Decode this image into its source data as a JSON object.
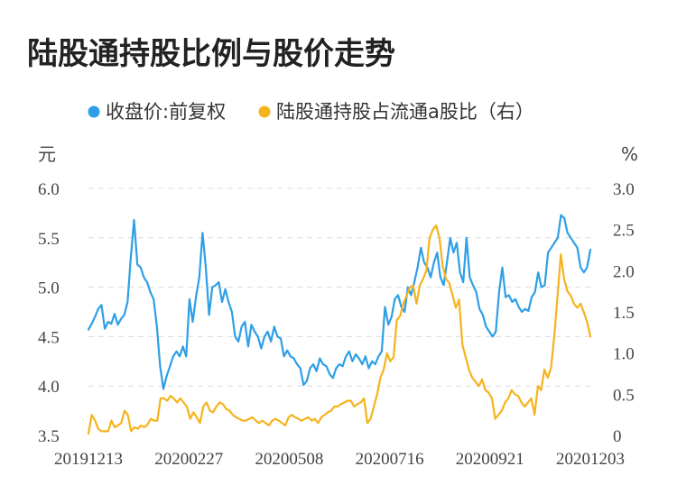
{
  "title": "陆股通持股比例与股价走势",
  "chart_data": {
    "type": "line",
    "title": "陆股通持股比例与股价走势",
    "y_left_unit": "元",
    "y_right_unit": "%",
    "y_left_ticks": [
      "6.0",
      "5.5",
      "5.0",
      "4.5",
      "4.0",
      "3.5"
    ],
    "y_right_ticks": [
      "3.0",
      "2.5",
      "2.0",
      "1.5",
      "1.0",
      "0.5",
      "0"
    ],
    "ylim_left": [
      3.5,
      6.0
    ],
    "ylim_right": [
      0,
      3.0
    ],
    "x_tick_labels": [
      "20191213",
      "20200227",
      "20200508",
      "20200716",
      "20200921",
      "20201203"
    ],
    "legend_position": "top-center",
    "grid": "horizontal-dashed",
    "series": [
      {
        "name": "收盘价:前复权",
        "axis": "left",
        "color": "#2E9FE6",
        "values": [
          4.57,
          4.63,
          4.7,
          4.78,
          4.82,
          4.58,
          4.65,
          4.63,
          4.73,
          4.62,
          4.68,
          4.72,
          4.85,
          5.3,
          5.68,
          5.23,
          5.2,
          5.1,
          5.05,
          4.95,
          4.88,
          4.6,
          4.2,
          3.97,
          4.1,
          4.2,
          4.3,
          4.35,
          4.3,
          4.4,
          4.3,
          4.88,
          4.65,
          4.9,
          5.1,
          5.55,
          5.2,
          4.72,
          5.0,
          5.02,
          5.05,
          4.85,
          4.98,
          4.85,
          4.75,
          4.5,
          4.45,
          4.6,
          4.65,
          4.4,
          4.62,
          4.55,
          4.5,
          4.38,
          4.5,
          4.55,
          4.45,
          4.6,
          4.5,
          4.48,
          4.3,
          4.36,
          4.3,
          4.28,
          4.22,
          4.18,
          4.01,
          4.05,
          4.18,
          4.22,
          4.15,
          4.28,
          4.22,
          4.2,
          4.12,
          4.08,
          4.18,
          4.22,
          4.2,
          4.3,
          4.35,
          4.25,
          4.32,
          4.28,
          4.22,
          4.3,
          4.18,
          4.25,
          4.22,
          4.3,
          4.35,
          4.8,
          4.62,
          4.7,
          4.88,
          4.92,
          4.8,
          4.75,
          5.0,
          4.92,
          5.05,
          5.2,
          5.4,
          5.25,
          5.2,
          5.1,
          5.25,
          5.35,
          5.1,
          5.02,
          5.25,
          5.5,
          5.35,
          5.45,
          5.15,
          5.05,
          5.5,
          5.1,
          5.02,
          4.95,
          4.78,
          4.72,
          4.6,
          4.55,
          4.5,
          4.55,
          4.95,
          5.2,
          4.9,
          4.92,
          4.85,
          4.88,
          4.8,
          4.75,
          4.78,
          4.76,
          4.9,
          4.95,
          5.15,
          5.0,
          5.02,
          5.35,
          5.4,
          5.45,
          5.5,
          5.73,
          5.7,
          5.55,
          5.5,
          5.45,
          5.4,
          5.2,
          5.15,
          5.2,
          5.38
        ]
      },
      {
        "name": "陆股通持股占流通a股比（右）",
        "axis": "right",
        "color": "#F5B31D",
        "values": [
          0.02,
          0.25,
          0.18,
          0.08,
          0.05,
          0.05,
          0.05,
          0.18,
          0.1,
          0.12,
          0.15,
          0.3,
          0.25,
          0.05,
          0.1,
          0.08,
          0.12,
          0.1,
          0.13,
          0.2,
          0.18,
          0.18,
          0.45,
          0.45,
          0.42,
          0.48,
          0.45,
          0.4,
          0.45,
          0.4,
          0.35,
          0.2,
          0.28,
          0.22,
          0.15,
          0.35,
          0.4,
          0.3,
          0.28,
          0.35,
          0.4,
          0.38,
          0.32,
          0.3,
          0.25,
          0.22,
          0.2,
          0.18,
          0.18,
          0.2,
          0.22,
          0.18,
          0.15,
          0.18,
          0.15,
          0.12,
          0.18,
          0.2,
          0.18,
          0.15,
          0.12,
          0.22,
          0.25,
          0.22,
          0.2,
          0.18,
          0.2,
          0.22,
          0.18,
          0.2,
          0.15,
          0.22,
          0.25,
          0.28,
          0.3,
          0.35,
          0.35,
          0.38,
          0.4,
          0.42,
          0.42,
          0.35,
          0.38,
          0.4,
          0.45,
          0.15,
          0.2,
          0.35,
          0.5,
          0.7,
          0.8,
          1.0,
          0.9,
          0.95,
          1.4,
          1.45,
          1.6,
          1.7,
          1.8,
          1.82,
          1.6,
          1.82,
          1.9,
          2.0,
          2.4,
          2.5,
          2.55,
          2.4,
          2.05,
          1.9,
          1.85,
          1.7,
          1.55,
          1.65,
          1.1,
          0.95,
          0.8,
          0.7,
          0.65,
          0.6,
          0.68,
          0.55,
          0.52,
          0.45,
          0.2,
          0.25,
          0.3,
          0.4,
          0.45,
          0.55,
          0.5,
          0.48,
          0.4,
          0.35,
          0.4,
          0.45,
          0.25,
          0.6,
          0.55,
          0.8,
          0.7,
          0.82,
          1.2,
          1.7,
          2.2,
          1.9,
          1.75,
          1.7,
          1.6,
          1.55,
          1.6,
          1.5,
          1.38,
          1.2
        ]
      }
    ]
  }
}
